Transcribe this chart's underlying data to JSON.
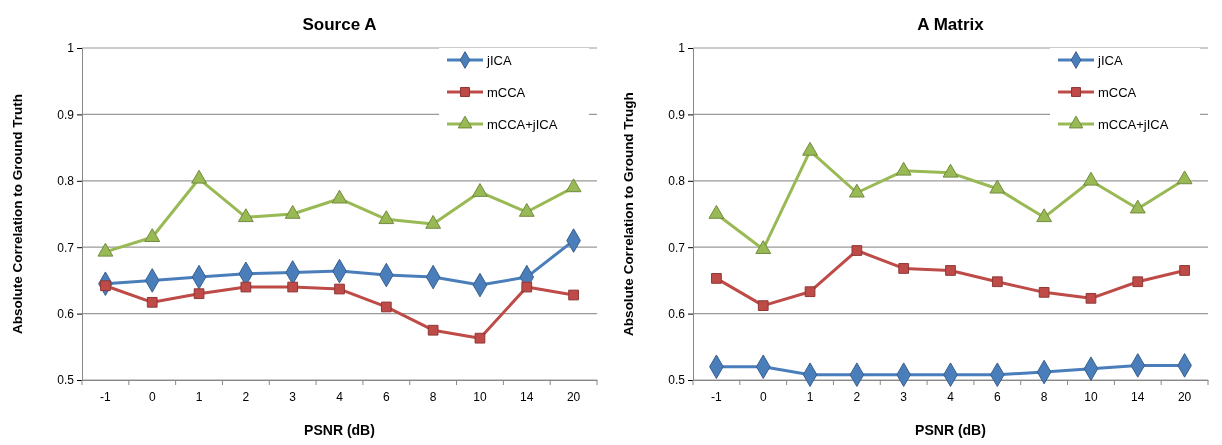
{
  "chart_data": [
    {
      "type": "line",
      "title": "Source A",
      "xlabel": "PSNR (dB)",
      "ylabel": "Absolute Correlation to Ground Truth",
      "categories": [
        "-1",
        "0",
        "1",
        "2",
        "3",
        "4",
        "6",
        "8",
        "10",
        "14",
        "20"
      ],
      "ylim": [
        0.5,
        1
      ],
      "yticks": [
        0.5,
        0.6,
        0.7,
        0.8,
        0.9,
        1
      ],
      "grid": "y",
      "legend": "top right",
      "series": [
        {
          "name": "jICA",
          "color": "#4a7ebb",
          "marker": "diamond",
          "values": [
            0.645,
            0.65,
            0.655,
            0.66,
            0.662,
            0.664,
            0.658,
            0.655,
            0.643,
            0.655,
            0.71
          ]
        },
        {
          "name": "mCCA",
          "color": "#be4b48",
          "marker": "square",
          "values": [
            0.642,
            0.617,
            0.63,
            0.64,
            0.64,
            0.637,
            0.61,
            0.575,
            0.563,
            0.64,
            0.628
          ]
        },
        {
          "name": "mCCA+jICA",
          "color": "#98b954",
          "marker": "triangle",
          "values": [
            0.693,
            0.715,
            0.803,
            0.745,
            0.75,
            0.773,
            0.742,
            0.735,
            0.783,
            0.753,
            0.79
          ]
        }
      ]
    },
    {
      "type": "line",
      "title": "A Matrix",
      "xlabel": "PSNR (dB)",
      "ylabel": "Absolute Correlation to Ground Trugh",
      "categories": [
        "-1",
        "0",
        "1",
        "2",
        "3",
        "4",
        "6",
        "8",
        "10",
        "14",
        "20"
      ],
      "ylim": [
        0.5,
        1
      ],
      "yticks": [
        0.5,
        0.6,
        0.7,
        0.8,
        0.9,
        1
      ],
      "grid": "y",
      "legend": "top right",
      "series": [
        {
          "name": "jICA",
          "color": "#4a7ebb",
          "marker": "diamond",
          "values": [
            0.52,
            0.52,
            0.508,
            0.508,
            0.508,
            0.508,
            0.508,
            0.512,
            0.517,
            0.522,
            0.522
          ]
        },
        {
          "name": "mCCA",
          "color": "#be4b48",
          "marker": "square",
          "values": [
            0.653,
            0.612,
            0.633,
            0.695,
            0.668,
            0.665,
            0.648,
            0.632,
            0.623,
            0.648,
            0.665
          ]
        },
        {
          "name": "mCCA+jICA",
          "color": "#98b954",
          "marker": "triangle",
          "values": [
            0.75,
            0.697,
            0.845,
            0.782,
            0.815,
            0.812,
            0.788,
            0.745,
            0.8,
            0.758,
            0.802
          ]
        }
      ]
    }
  ]
}
